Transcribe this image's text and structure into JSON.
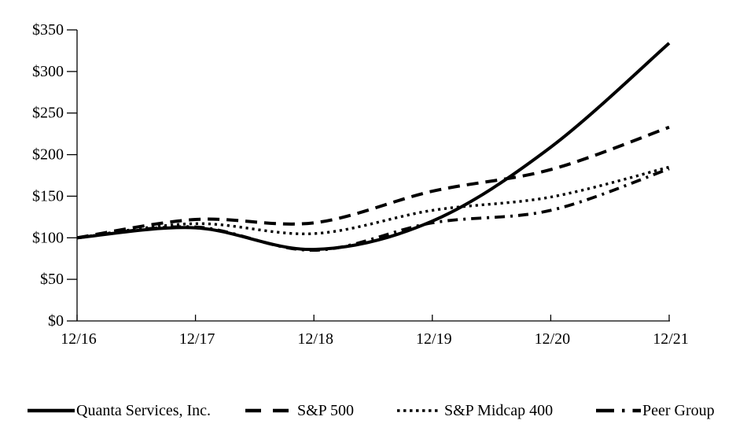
{
  "chart_data": {
    "type": "line",
    "title": "",
    "xlabel": "",
    "ylabel": "",
    "x_categories": [
      "12/16",
      "12/17",
      "12/18",
      "12/19",
      "12/20",
      "12/21"
    ],
    "y_tick_labels": [
      "$0",
      "$50",
      "$100",
      "$150",
      "$200",
      "$250",
      "$300",
      "$350"
    ],
    "y_tick_values": [
      0,
      50,
      100,
      150,
      200,
      250,
      300,
      350
    ],
    "ylim": [
      0,
      350
    ],
    "grid": false,
    "legend_position": "bottom",
    "axis_color": "#000000",
    "series": [
      {
        "name": "Quanta Services, Inc.",
        "line_style": "solid",
        "color": "#000000",
        "values": [
          100,
          112,
          86,
          120,
          209,
          334
        ]
      },
      {
        "name": "S&P 500",
        "line_style": "dashed",
        "color": "#000000",
        "values": [
          100,
          122,
          118,
          156,
          182,
          233
        ]
      },
      {
        "name": "S&P Midcap 400",
        "line_style": "dotted",
        "color": "#000000",
        "values": [
          100,
          117,
          105,
          133,
          149,
          185
        ]
      },
      {
        "name": "Peer Group",
        "line_style": "dash-dot",
        "color": "#000000",
        "values": [
          100,
          113,
          85,
          118,
          133,
          183
        ]
      }
    ]
  }
}
